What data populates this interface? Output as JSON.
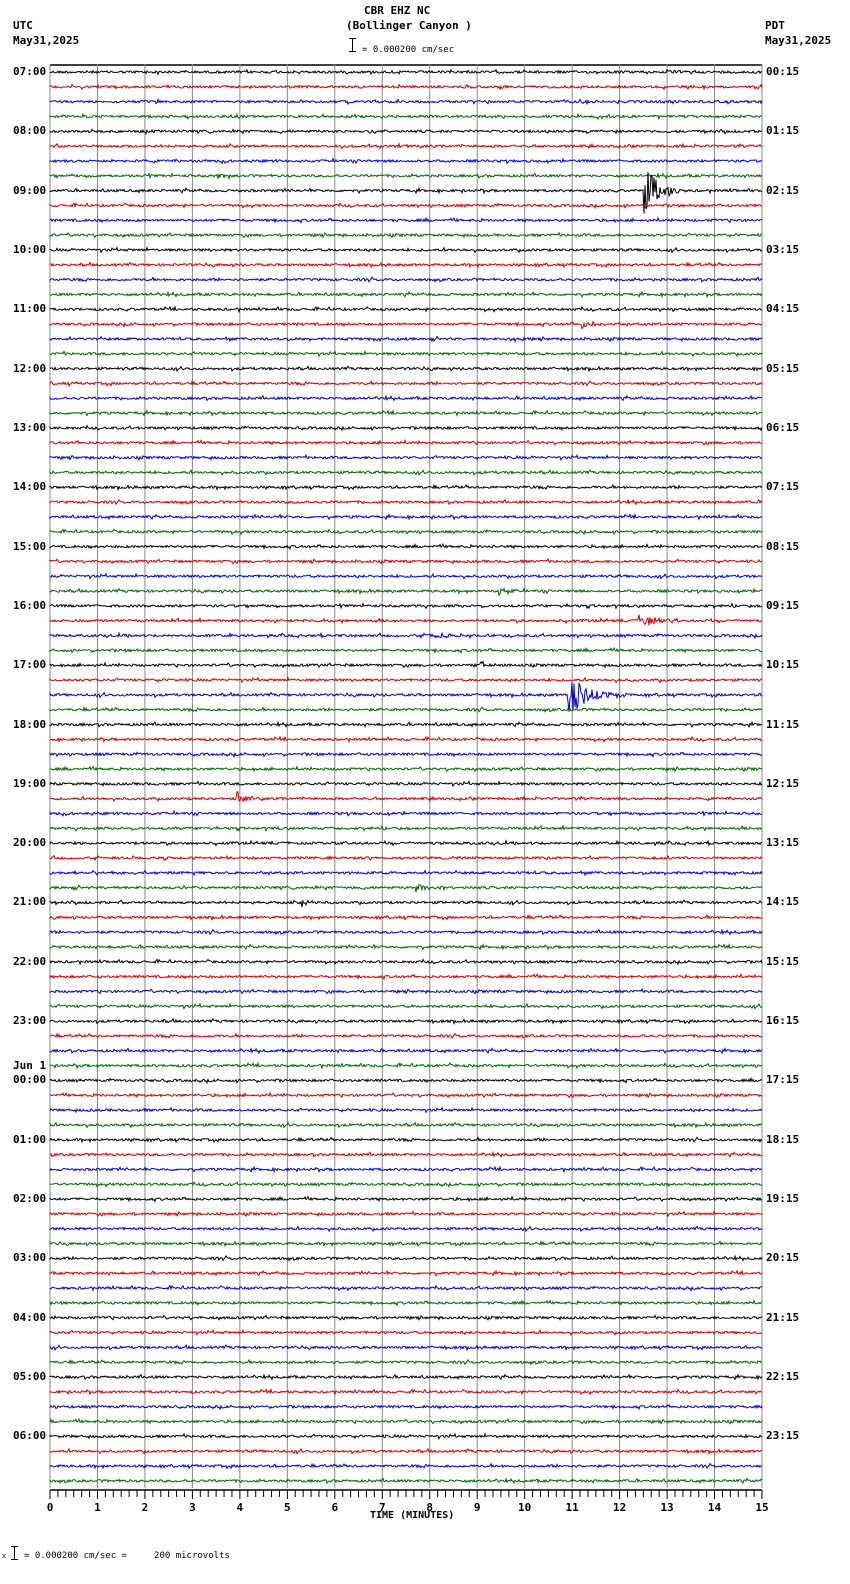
{
  "header": {
    "station": "CBR EHZ NC",
    "location": "(Bollinger Canyon )",
    "left_tz": "UTC",
    "left_date": "May31,2025",
    "right_tz": "PDT",
    "right_date": "May31,2025",
    "scale_text": "= 0.000200 cm/sec"
  },
  "footer": {
    "scale_text": "= 0.000200 cm/sec =     200 microvolts",
    "prefix": "x"
  },
  "chart_data": {
    "type": "line",
    "title": "CBR EHZ NC (Bollinger Canyon )",
    "xlabel": "TIME (MINUTES)",
    "ylabel": "",
    "x_ticks": [
      "0",
      "1",
      "2",
      "3",
      "4",
      "5",
      "6",
      "7",
      "8",
      "9",
      "10",
      "11",
      "12",
      "13",
      "14",
      "15"
    ],
    "xlim": [
      0,
      15
    ],
    "grid": true,
    "traces_per_hour": 4,
    "trace_count": 96,
    "trace_colors": [
      "#000000",
      "#cc0000",
      "#0000cc",
      "#006600"
    ],
    "left_labels": [
      {
        "row": 0,
        "text": "07:00"
      },
      {
        "row": 4,
        "text": "08:00"
      },
      {
        "row": 8,
        "text": "09:00"
      },
      {
        "row": 12,
        "text": "10:00"
      },
      {
        "row": 16,
        "text": "11:00"
      },
      {
        "row": 20,
        "text": "12:00"
      },
      {
        "row": 24,
        "text": "13:00"
      },
      {
        "row": 28,
        "text": "14:00"
      },
      {
        "row": 32,
        "text": "15:00"
      },
      {
        "row": 36,
        "text": "16:00"
      },
      {
        "row": 40,
        "text": "17:00"
      },
      {
        "row": 44,
        "text": "18:00"
      },
      {
        "row": 48,
        "text": "19:00"
      },
      {
        "row": 52,
        "text": "20:00"
      },
      {
        "row": 56,
        "text": "21:00"
      },
      {
        "row": 60,
        "text": "22:00"
      },
      {
        "row": 64,
        "text": "23:00"
      },
      {
        "row": 68,
        "text": "00:00",
        "prefix": "Jun 1"
      },
      {
        "row": 72,
        "text": "01:00"
      },
      {
        "row": 76,
        "text": "02:00"
      },
      {
        "row": 80,
        "text": "03:00"
      },
      {
        "row": 84,
        "text": "04:00"
      },
      {
        "row": 88,
        "text": "05:00"
      },
      {
        "row": 92,
        "text": "06:00"
      }
    ],
    "right_labels": [
      {
        "row": 0,
        "text": "00:15"
      },
      {
        "row": 4,
        "text": "01:15"
      },
      {
        "row": 8,
        "text": "02:15"
      },
      {
        "row": 12,
        "text": "03:15"
      },
      {
        "row": 16,
        "text": "04:15"
      },
      {
        "row": 20,
        "text": "05:15"
      },
      {
        "row": 24,
        "text": "06:15"
      },
      {
        "row": 28,
        "text": "07:15"
      },
      {
        "row": 32,
        "text": "08:15"
      },
      {
        "row": 36,
        "text": "09:15"
      },
      {
        "row": 40,
        "text": "10:15"
      },
      {
        "row": 44,
        "text": "11:15"
      },
      {
        "row": 48,
        "text": "12:15"
      },
      {
        "row": 52,
        "text": "13:15"
      },
      {
        "row": 56,
        "text": "14:15"
      },
      {
        "row": 60,
        "text": "15:15"
      },
      {
        "row": 64,
        "text": "16:15"
      },
      {
        "row": 68,
        "text": "17:15"
      },
      {
        "row": 72,
        "text": "18:15"
      },
      {
        "row": 76,
        "text": "19:15"
      },
      {
        "row": 80,
        "text": "20:15"
      },
      {
        "row": 84,
        "text": "21:15"
      },
      {
        "row": 88,
        "text": "22:15"
      },
      {
        "row": 92,
        "text": "23:15"
      }
    ],
    "events": [
      {
        "row": 7,
        "minute": 3.5,
        "amp": 4,
        "dur": 0.4
      },
      {
        "row": 8,
        "minute": 12.5,
        "amp": 30,
        "dur": 0.8,
        "note": "large event ~09:00 UTC"
      },
      {
        "row": 17,
        "minute": 11.2,
        "amp": 5,
        "dur": 0.6
      },
      {
        "row": 18,
        "minute": 9.7,
        "amp": 6,
        "dur": 0.4
      },
      {
        "row": 35,
        "minute": 9.4,
        "amp": 7,
        "dur": 0.5
      },
      {
        "row": 37,
        "minute": 12.4,
        "amp": 7,
        "dur": 1.0
      },
      {
        "row": 38,
        "minute": 8.0,
        "amp": 3,
        "dur": 1.5
      },
      {
        "row": 40,
        "minute": 9.0,
        "amp": 4,
        "dur": 0.8
      },
      {
        "row": 42,
        "minute": 10.9,
        "amp": 20,
        "dur": 1.3,
        "note": "event ~17:30 UTC"
      },
      {
        "row": 49,
        "minute": 3.9,
        "amp": 9,
        "dur": 0.5
      },
      {
        "row": 55,
        "minute": 7.7,
        "amp": 4,
        "dur": 0.8
      },
      {
        "row": 56,
        "minute": 5.3,
        "amp": 5,
        "dur": 0.4
      }
    ]
  }
}
